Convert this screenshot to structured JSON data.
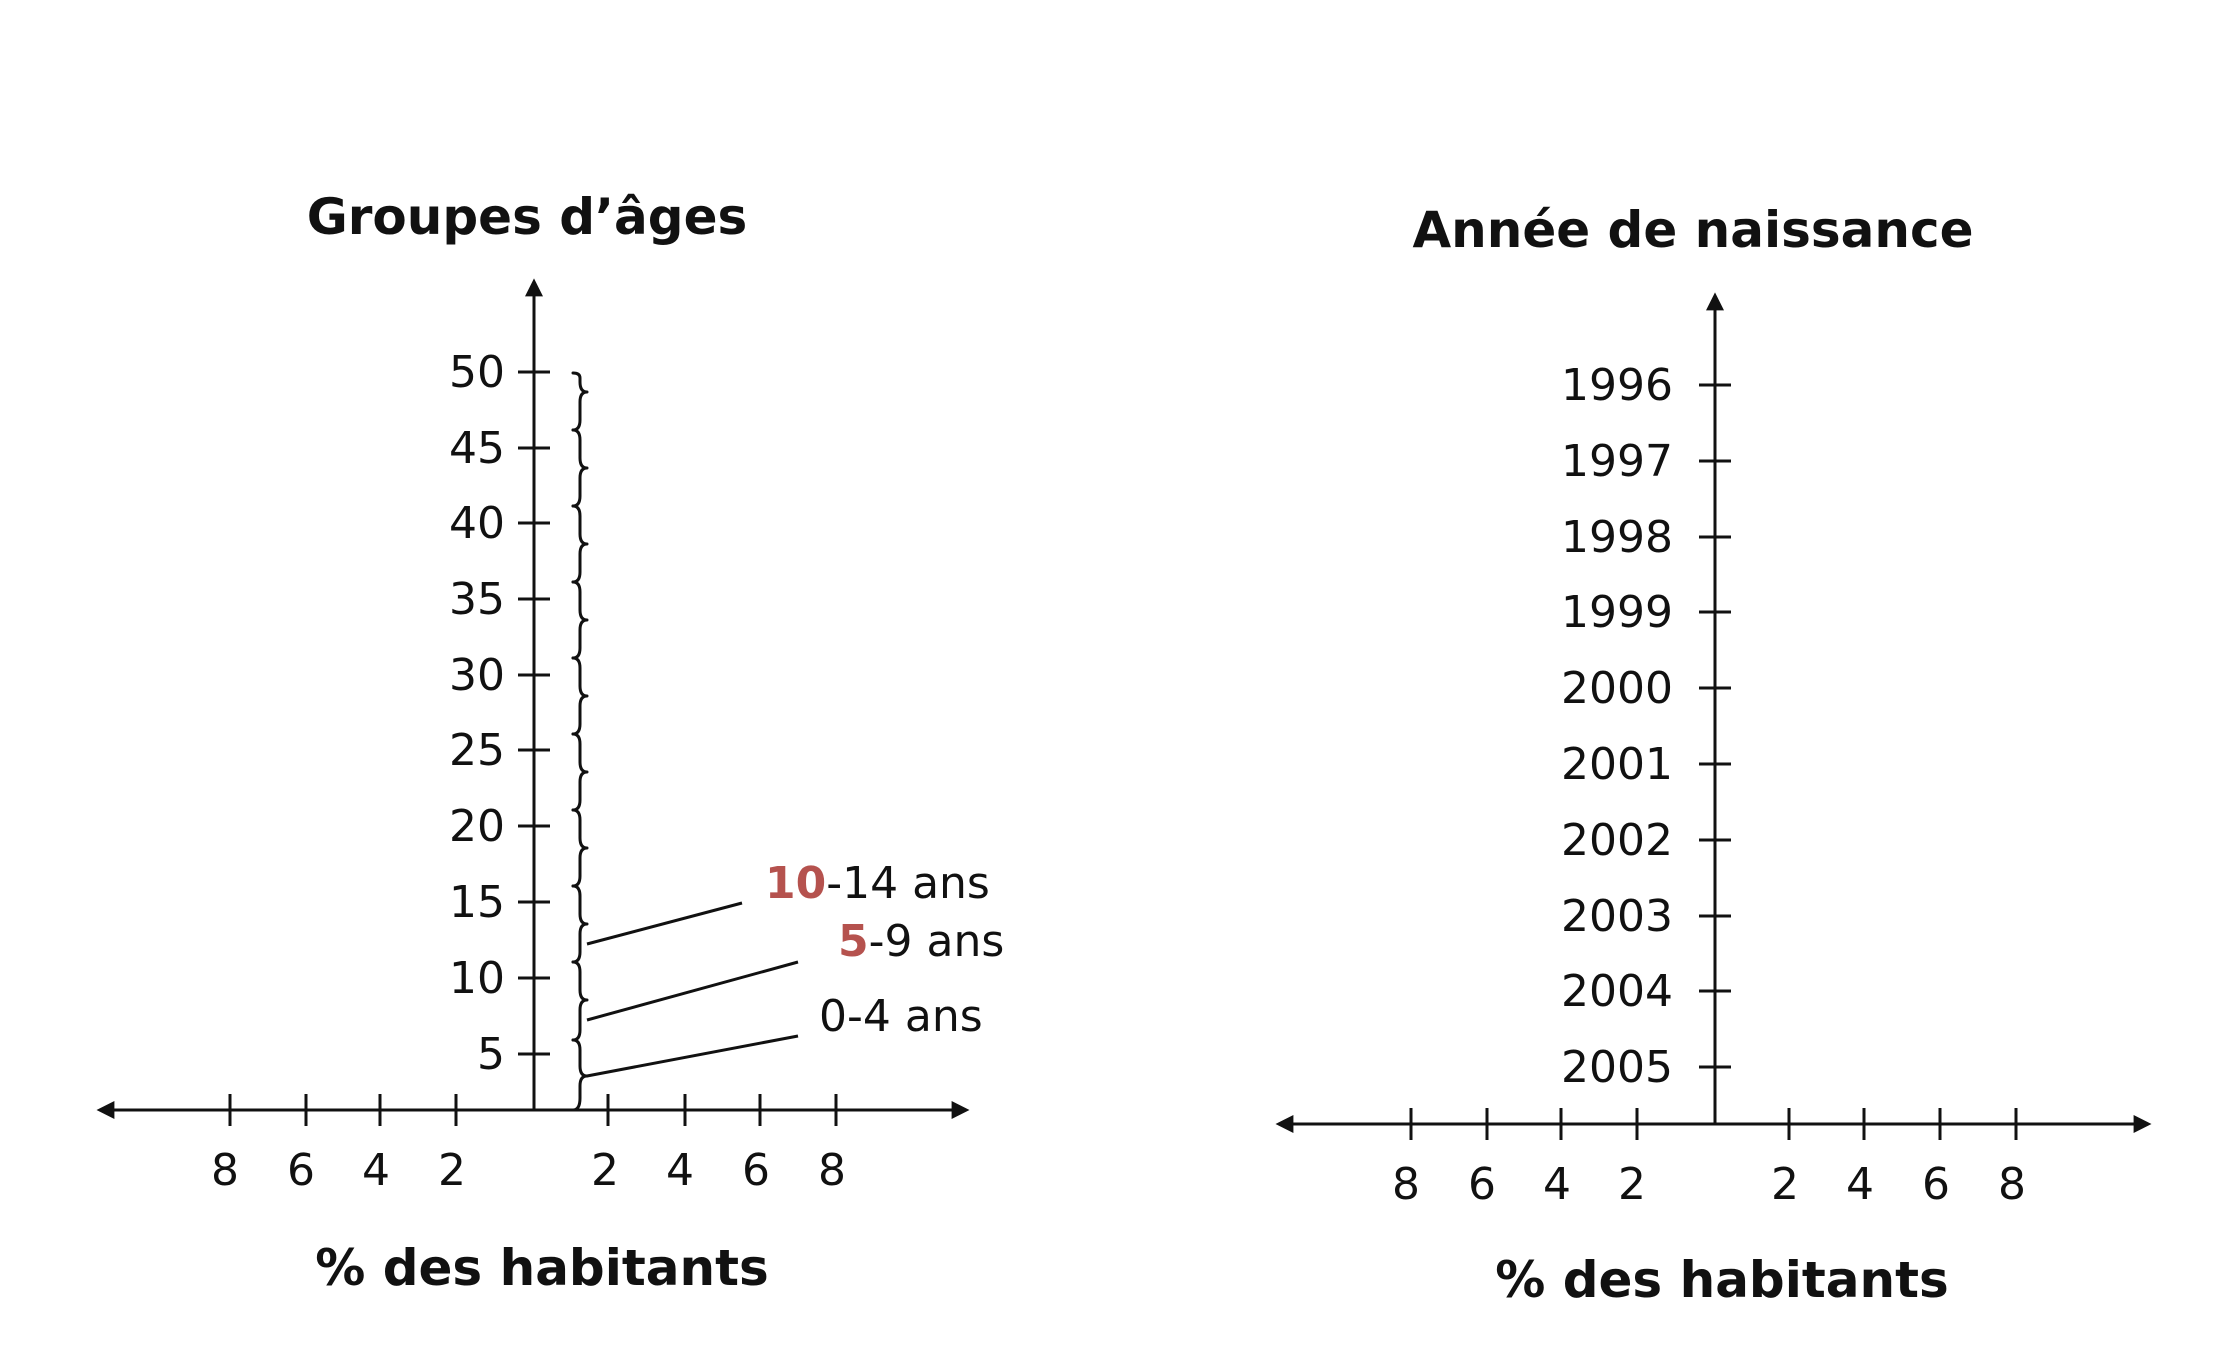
{
  "colors": {
    "ink": "#111111",
    "highlight": "#b5524e",
    "background": "#ffffff"
  },
  "left_chart": {
    "title": "Groupes d’âges",
    "x_axis_label": "% des habitants",
    "y_ticks": [
      "5",
      "10",
      "15",
      "20",
      "25",
      "30",
      "35",
      "40",
      "45",
      "50"
    ],
    "x_ticks_left": [
      "8",
      "6",
      "4",
      "2"
    ],
    "x_ticks_right": [
      "2",
      "4",
      "6",
      "8"
    ],
    "annotations": [
      {
        "start": "10",
        "rest": "-14 ans"
      },
      {
        "start": "5",
        "rest": "-9 ans"
      },
      {
        "start": "",
        "rest": "0-4 ans"
      }
    ]
  },
  "right_chart": {
    "title": "Année de naissance",
    "x_axis_label": "% des habitants",
    "y_ticks": [
      "1996",
      "1997",
      "1998",
      "1999",
      "2000",
      "2001",
      "2002",
      "2003",
      "2004",
      "2005"
    ],
    "x_ticks_left": [
      "8",
      "6",
      "4",
      "2"
    ],
    "x_ticks_right": [
      "2",
      "4",
      "6",
      "8"
    ]
  }
}
